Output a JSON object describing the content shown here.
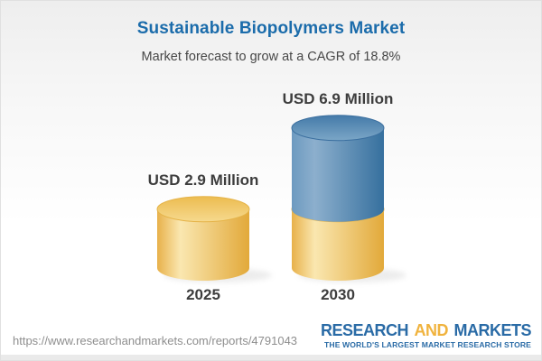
{
  "header": {
    "title": "Sustainable Biopolymers Market",
    "subtitle": "Market forecast to grow at a CAGR of 18.8%"
  },
  "chart_data": {
    "type": "bar",
    "subtype": "3d-cylinder-stacked",
    "categories": [
      "2025",
      "2030"
    ],
    "values": [
      2.9,
      6.9
    ],
    "value_labels": [
      "USD 2.9 Million",
      "USD 6.9 Million"
    ],
    "unit": "USD Million",
    "cagr_percent": 18.8,
    "stacked_segments": {
      "2025": [
        {
          "color_name": "gold",
          "value": 2.9
        }
      ],
      "2030": [
        {
          "color_name": "gold",
          "value": 2.9
        },
        {
          "color_name": "blue",
          "value": 4.0
        }
      ]
    },
    "axes": "none",
    "gridlines": "none",
    "legend_position": "none"
  },
  "footer": {
    "url_caption": "https://www.researchandmarkets.com/reports/4791043"
  },
  "logo": {
    "word1": "RESEARCH",
    "word2": "AND",
    "word3": "MARKETS",
    "tagline": "THE WORLD'S LARGEST MARKET RESEARCH STORE"
  },
  "colors": {
    "title_blue": "#1b6cab",
    "bar_gold": "#f0c35f",
    "bar_blue": "#4b80ac",
    "label_dark": "#3d3d3d",
    "url_gray": "#8e8e8e",
    "logo_blue": "#2a6ba6",
    "logo_orange": "#f0b33e"
  }
}
